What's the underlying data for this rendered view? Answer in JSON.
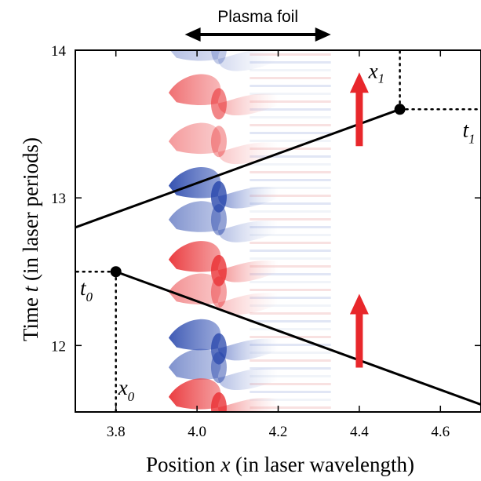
{
  "chart_data": {
    "type": "heatmap",
    "xlabel_prefix": "Position ",
    "xlabel_var": "x",
    "xlabel_suffix": " (in laser wavelength)",
    "ylabel_prefix": "Time ",
    "ylabel_var": "t",
    "ylabel_suffix": " (in laser periods)",
    "xlim": [
      3.7,
      4.7
    ],
    "ylim": [
      11.55,
      14.0
    ],
    "x_ticks": [
      {
        "value": 3.8,
        "label": "3.8"
      },
      {
        "value": 4.0,
        "label": "4.0"
      },
      {
        "value": 4.2,
        "label": "4.2"
      },
      {
        "value": 4.4,
        "label": "4.4"
      },
      {
        "value": 4.6,
        "label": "4.6"
      }
    ],
    "y_ticks": [
      {
        "value": 12,
        "label": "12"
      },
      {
        "value": 13,
        "label": "13"
      },
      {
        "value": 14,
        "label": "14"
      }
    ],
    "foil": {
      "label": "Plasma foil",
      "x_start": 3.97,
      "x_end": 4.33
    },
    "lines": [
      {
        "name": "incoming",
        "x": [
          3.7,
          4.5
        ],
        "y": [
          12.8,
          13.6
        ]
      },
      {
        "name": "reflected",
        "x": [
          3.8,
          4.7
        ],
        "y": [
          12.5,
          11.6
        ]
      }
    ],
    "points": [
      {
        "name": "p1",
        "x": 4.5,
        "y": 13.6,
        "x_label": "x",
        "x_sub": "1",
        "t_label": "t",
        "t_sub": "1"
      },
      {
        "name": "p0",
        "x": 3.8,
        "y": 12.5,
        "x_label": "x",
        "x_sub": "0",
        "t_label": "t",
        "t_sub": "0"
      }
    ],
    "arrows": [
      {
        "x": 4.4,
        "y_from": 13.35,
        "y_to": 13.85,
        "color": "#e8272b"
      },
      {
        "x": 4.4,
        "y_from": 11.85,
        "y_to": 12.35,
        "color": "#e8272b"
      }
    ],
    "colors": {
      "positive": "#e8272b",
      "negative": "#1f3fa8",
      "line": "#000000"
    },
    "grid": false
  }
}
